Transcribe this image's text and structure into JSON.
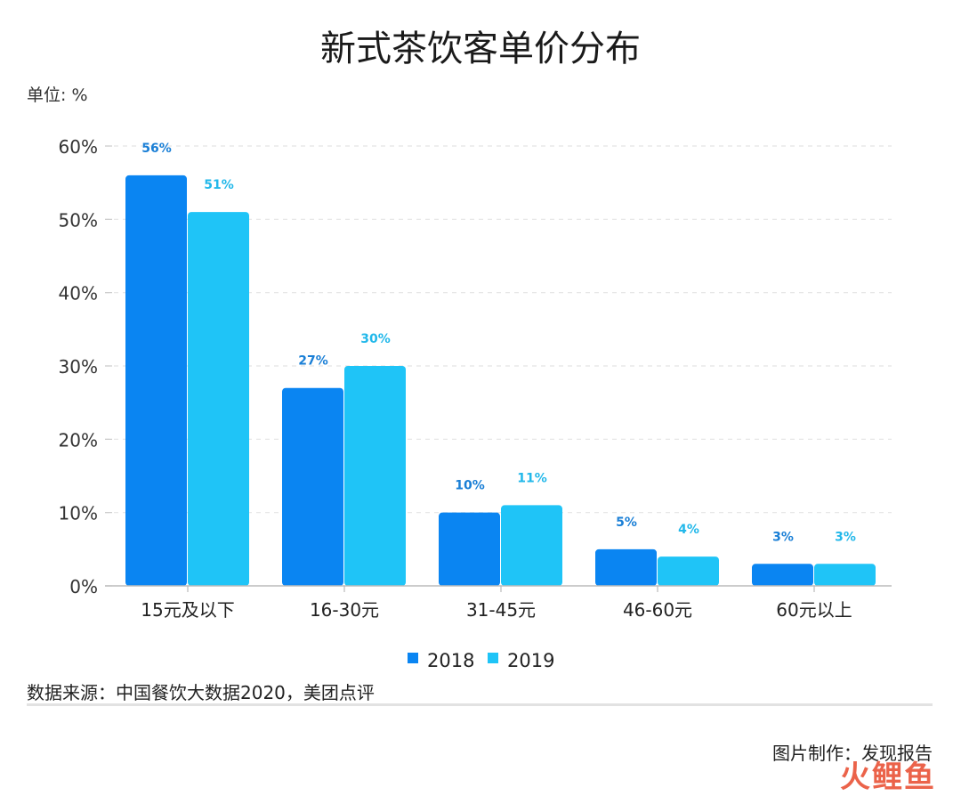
{
  "title": "新式茶饮客单价分布",
  "unit_label": "单位: %",
  "source": "数据来源：中国餐饮大数据2020，美团点评",
  "credit": "图片制作：发现报告",
  "watermark": "火鲤鱼",
  "colors": {
    "2018": "#0a85f2",
    "2019": "#1fc4f7",
    "label_2018": "#1a7fd6",
    "label_2019": "#22b8ea"
  },
  "chart_data": {
    "type": "bar",
    "title": "新式茶饮客单价分布",
    "xlabel": "",
    "ylabel": "单位: %",
    "ylim": [
      0,
      60
    ],
    "yticks": [
      0,
      10,
      20,
      30,
      40,
      50,
      60
    ],
    "ytick_labels": [
      "0%",
      "10%",
      "20%",
      "30%",
      "40%",
      "50%",
      "60%"
    ],
    "grid": true,
    "legend": "bottom-center",
    "categories": [
      "15元及以下",
      "16-30元",
      "31-45元",
      "46-60元",
      "60元以上"
    ],
    "series": [
      {
        "name": "2018",
        "values": [
          56,
          27,
          10,
          5,
          3
        ],
        "labels": [
          "56%",
          "27%",
          "10%",
          "5%",
          "3%"
        ]
      },
      {
        "name": "2019",
        "values": [
          51,
          30,
          11,
          4,
          3
        ],
        "labels": [
          "51%",
          "30%",
          "11%",
          "4%",
          "3%"
        ]
      }
    ]
  }
}
